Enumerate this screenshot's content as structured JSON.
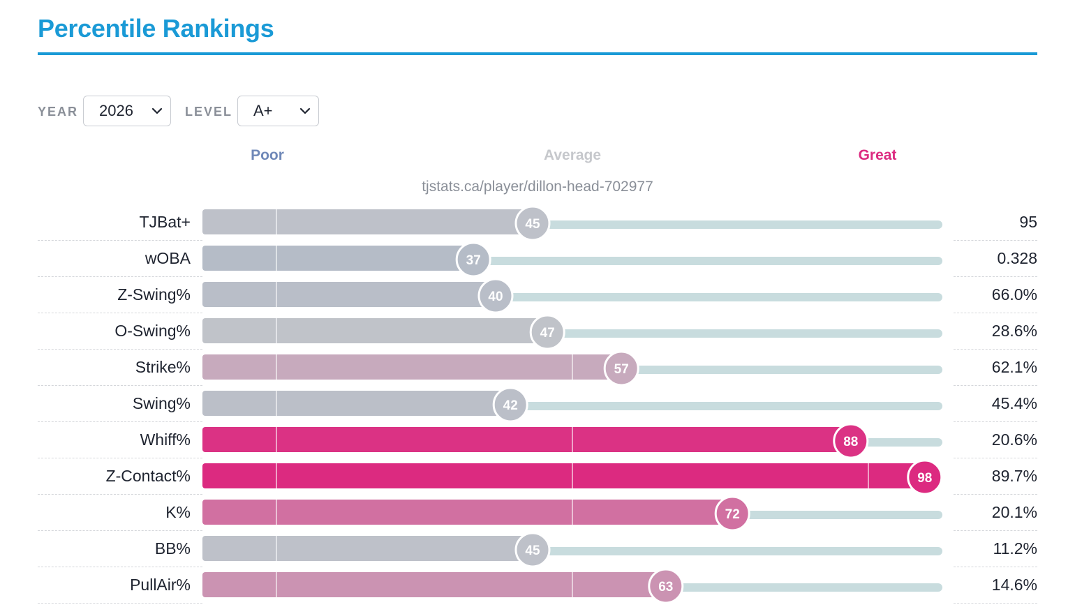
{
  "header": {
    "title": "Percentile Rankings"
  },
  "controls": {
    "year_label": "YEAR",
    "year_value": "2026",
    "level_label": "LEVEL",
    "level_value": "A+"
  },
  "colors": {
    "poor": "#8fa1c0",
    "average": "#c3c5ca",
    "great": "#dc2a80",
    "track": "#c8dcde",
    "accent": "#1a9ad6"
  },
  "icons": {
    "dropdown": "chevron-down-icon"
  },
  "chart_data": {
    "type": "bar",
    "title": "Percentile Rankings",
    "legend": {
      "poor": "Poor",
      "average": "Average",
      "great": "Great"
    },
    "source": "tjstats.ca/player/dillon-head-702977",
    "xlim": [
      0,
      100
    ],
    "rows": [
      {
        "stat": "TJBat+",
        "percentile": 45,
        "value": "95"
      },
      {
        "stat": "wOBA",
        "percentile": 37,
        "value": "0.328"
      },
      {
        "stat": "Z-Swing%",
        "percentile": 40,
        "value": "66.0%"
      },
      {
        "stat": "O-Swing%",
        "percentile": 47,
        "value": "28.6%"
      },
      {
        "stat": "Strike%",
        "percentile": 57,
        "value": "62.1%"
      },
      {
        "stat": "Swing%",
        "percentile": 42,
        "value": "45.4%"
      },
      {
        "stat": "Whiff%",
        "percentile": 88,
        "value": "20.6%"
      },
      {
        "stat": "Z-Contact%",
        "percentile": 98,
        "value": "89.7%"
      },
      {
        "stat": "K%",
        "percentile": 72,
        "value": "20.1%"
      },
      {
        "stat": "BB%",
        "percentile": 45,
        "value": "11.2%"
      },
      {
        "stat": "PullAir%",
        "percentile": 63,
        "value": "14.6%"
      }
    ]
  }
}
